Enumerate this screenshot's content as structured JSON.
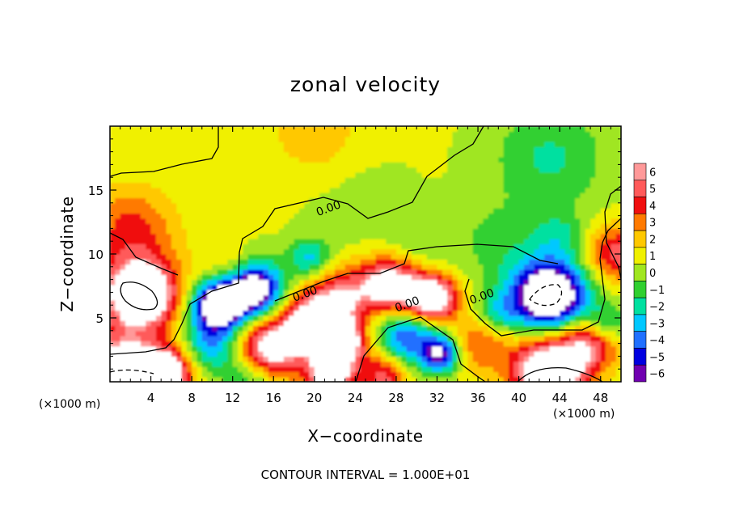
{
  "chart_data": {
    "type": "heatmap",
    "title": "zonal velocity",
    "xlabel": "X−coordinate",
    "ylabel": "Z−coordinate",
    "x_unit": "(×1000 m)",
    "y_unit": "(×1000 m)",
    "xlim": [
      0,
      50
    ],
    "ylim": [
      0,
      20
    ],
    "x_ticks": [
      4,
      8,
      12,
      16,
      20,
      24,
      28,
      32,
      36,
      40,
      44,
      48
    ],
    "x_tick_labels": [
      "4",
      "8",
      "12",
      "16",
      "20",
      "24",
      "28",
      "32",
      "36",
      "40",
      "44",
      "48"
    ],
    "y_ticks": [
      5,
      10,
      15
    ],
    "y_tick_labels": [
      "5",
      "10",
      "15"
    ],
    "colorbar": {
      "labels": [
        "6",
        "5",
        "4",
        "3",
        "2",
        "1",
        "0",
        "−1",
        "−2",
        "−3",
        "−4",
        "−5",
        "−6"
      ],
      "colors": [
        "#ff9999",
        "#ff5a5a",
        "#f00f0f",
        "#ff7a00",
        "#ffc800",
        "#f0f000",
        "#a0e620",
        "#30d030",
        "#00e0a0",
        "#00c8ff",
        "#2070ff",
        "#0000e0",
        "#7000b0"
      ],
      "saturated_color": "#ffffff"
    },
    "contour_labels": [
      {
        "text": "0.00",
        "x": 21.5,
        "y": 13.3
      },
      {
        "text": "0.00",
        "x": 19.2,
        "y": 6.6
      },
      {
        "text": "0.00",
        "x": 29.2,
        "y": 5.8
      },
      {
        "text": "0.00",
        "x": 36.5,
        "y": 6.4
      }
    ],
    "note": "CONTOUR INTERVAL = 1.000E+01",
    "features": [
      {
        "cx": 2.0,
        "cz": 12.0,
        "r": 4.5,
        "v": 3.2
      },
      {
        "cx": 3.0,
        "cz": 6.8,
        "r": 3.8,
        "v": 9.0
      },
      {
        "cx": 1.0,
        "cz": 1.0,
        "r": 3.4,
        "v": 8.0
      },
      {
        "cx": 5.5,
        "cz": 0.8,
        "r": 2.6,
        "v": 8.0
      },
      {
        "cx": 10.5,
        "cz": 6.0,
        "r": 2.6,
        "v": -9.0
      },
      {
        "cx": 14.0,
        "cz": 7.3,
        "r": 2.8,
        "v": -9.0
      },
      {
        "cx": 12.0,
        "cz": 8.8,
        "r": 2.4,
        "v": 2.0
      },
      {
        "cx": 10.0,
        "cz": 2.8,
        "r": 3.0,
        "v": -4.0
      },
      {
        "cx": 15.5,
        "cz": 2.5,
        "r": 3.2,
        "v": 7.0
      },
      {
        "cx": 20.0,
        "cz": 4.5,
        "r": 3.0,
        "v": 8.0
      },
      {
        "cx": 23.0,
        "cz": 3.0,
        "r": 2.6,
        "v": 6.5
      },
      {
        "cx": 19.5,
        "cz": 9.7,
        "r": 2.0,
        "v": -3.5
      },
      {
        "cx": 22.5,
        "cz": 6.8,
        "r": 3.0,
        "v": 4.0
      },
      {
        "cx": 27.5,
        "cz": 7.5,
        "r": 3.2,
        "v": 7.5
      },
      {
        "cx": 31.5,
        "cz": 6.5,
        "r": 2.5,
        "v": 8.5
      },
      {
        "cx": 29.0,
        "cz": 3.6,
        "r": 3.6,
        "v": -5.5
      },
      {
        "cx": 32.5,
        "cz": 2.2,
        "r": 1.8,
        "v": -6.0
      },
      {
        "cx": 27.0,
        "cz": 0.6,
        "r": 2.4,
        "v": 5.0
      },
      {
        "cx": 21.5,
        "cz": 0.5,
        "r": 2.2,
        "v": 7.0
      },
      {
        "cx": 14.0,
        "cz": 0.5,
        "r": 2.4,
        "v": -3.0
      },
      {
        "cx": 36.0,
        "cz": 3.0,
        "r": 3.0,
        "v": 3.0
      },
      {
        "cx": 43.0,
        "cz": 6.8,
        "r": 3.8,
        "v": -10.0
      },
      {
        "cx": 43.0,
        "cz": 0.9,
        "r": 3.6,
        "v": 9.0
      },
      {
        "cx": 47.0,
        "cz": 3.2,
        "r": 2.8,
        "v": 5.0
      },
      {
        "cx": 49.5,
        "cz": 10.0,
        "r": 3.0,
        "v": 4.5
      },
      {
        "cx": 48.5,
        "cz": 4.5,
        "r": 2.0,
        "v": -3.5
      },
      {
        "cx": 43.0,
        "cz": 17.5,
        "r": 5.5,
        "v": -2.3
      },
      {
        "cx": 38.0,
        "cz": 11.0,
        "r": 4.0,
        "v": -1.5
      },
      {
        "cx": 44.0,
        "cz": 11.5,
        "r": 2.5,
        "v": -2.0
      },
      {
        "cx": 20.0,
        "cz": 19.5,
        "r": 4.0,
        "v": 1.8
      },
      {
        "cx": 30.0,
        "cz": 10.0,
        "r": 3.5,
        "v": -1.3
      },
      {
        "cx": 38.0,
        "cz": 5.5,
        "r": 2.2,
        "v": -2.5
      },
      {
        "cx": 25.0,
        "cz": 13.0,
        "r": 5.0,
        "v": -0.6
      }
    ],
    "background": 0.6
  }
}
